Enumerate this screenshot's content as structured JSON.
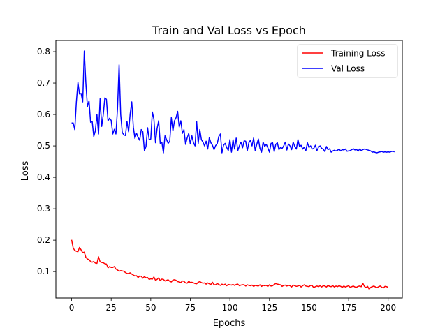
{
  "chart_data": {
    "type": "line",
    "title": "Train and Val Loss vs Epoch",
    "xlabel": "Epochs",
    "ylabel": "Loss",
    "xlim": [
      -9.95,
      208.95
    ],
    "ylim": [
      0.0159,
      0.8356
    ],
    "xticks": [
      0,
      25,
      50,
      75,
      100,
      125,
      150,
      175,
      200
    ],
    "yticks": [
      0.1,
      0.2,
      0.3,
      0.4,
      0.5,
      0.6,
      0.7,
      0.8
    ],
    "ytick_labels": [
      "0.1",
      "0.2",
      "0.3",
      "0.4",
      "0.5",
      "0.6",
      "0.7",
      "0.8"
    ],
    "grid": false,
    "legend_position": "top-right",
    "series": [
      {
        "name": "Training Loss",
        "color": "#ff0000",
        "values": [
          0.201,
          0.175,
          0.167,
          0.165,
          0.163,
          0.177,
          0.169,
          0.16,
          0.162,
          0.145,
          0.14,
          0.138,
          0.132,
          0.13,
          0.132,
          0.127,
          0.126,
          0.147,
          0.131,
          0.129,
          0.128,
          0.125,
          0.124,
          0.112,
          0.116,
          0.113,
          0.113,
          0.116,
          0.108,
          0.105,
          0.101,
          0.103,
          0.102,
          0.101,
          0.097,
          0.094,
          0.094,
          0.096,
          0.092,
          0.089,
          0.086,
          0.087,
          0.081,
          0.086,
          0.085,
          0.079,
          0.084,
          0.08,
          0.081,
          0.075,
          0.077,
          0.076,
          0.083,
          0.072,
          0.075,
          0.08,
          0.071,
          0.076,
          0.075,
          0.07,
          0.072,
          0.074,
          0.069,
          0.067,
          0.073,
          0.074,
          0.072,
          0.068,
          0.067,
          0.065,
          0.07,
          0.069,
          0.064,
          0.063,
          0.069,
          0.065,
          0.066,
          0.064,
          0.062,
          0.061,
          0.066,
          0.068,
          0.065,
          0.063,
          0.064,
          0.06,
          0.064,
          0.061,
          0.059,
          0.066,
          0.058,
          0.058,
          0.062,
          0.059,
          0.056,
          0.06,
          0.057,
          0.06,
          0.055,
          0.059,
          0.058,
          0.057,
          0.059,
          0.056,
          0.059,
          0.06,
          0.055,
          0.057,
          0.058,
          0.058,
          0.054,
          0.058,
          0.056,
          0.055,
          0.057,
          0.053,
          0.056,
          0.055,
          0.054,
          0.058,
          0.053,
          0.056,
          0.055,
          0.056,
          0.053,
          0.058,
          0.054,
          0.055,
          0.059,
          0.062,
          0.06,
          0.059,
          0.058,
          0.053,
          0.056,
          0.057,
          0.054,
          0.056,
          0.055,
          0.051,
          0.057,
          0.055,
          0.053,
          0.054,
          0.056,
          0.051,
          0.055,
          0.058,
          0.054,
          0.053,
          0.052,
          0.056,
          0.055,
          0.049,
          0.052,
          0.054,
          0.052,
          0.055,
          0.051,
          0.055,
          0.054,
          0.051,
          0.056,
          0.053,
          0.052,
          0.055,
          0.051,
          0.054,
          0.052,
          0.055,
          0.053,
          0.05,
          0.054,
          0.051,
          0.053,
          0.055,
          0.05,
          0.052,
          0.054,
          0.051,
          0.05,
          0.053,
          0.054,
          0.052,
          0.063,
          0.053,
          0.049,
          0.053,
          0.044,
          0.05,
          0.052,
          0.054,
          0.051,
          0.049,
          0.052,
          0.054,
          0.05,
          0.048,
          0.053,
          0.052,
          0.05
        ]
      },
      {
        "name": "Val Loss",
        "color": "#0000ff",
        "values": [
          0.573,
          0.573,
          0.552,
          0.64,
          0.702,
          0.665,
          0.667,
          0.64,
          0.802,
          0.7,
          0.625,
          0.644,
          0.575,
          0.578,
          0.53,
          0.548,
          0.6,
          0.538,
          0.65,
          0.562,
          0.6,
          0.653,
          0.648,
          0.58,
          0.588,
          0.581,
          0.538,
          0.553,
          0.538,
          0.62,
          0.758,
          0.6,
          0.543,
          0.535,
          0.533,
          0.578,
          0.545,
          0.602,
          0.64,
          0.56,
          0.524,
          0.54,
          0.527,
          0.518,
          0.552,
          0.545,
          0.485,
          0.498,
          0.558,
          0.52,
          0.522,
          0.608,
          0.585,
          0.51,
          0.555,
          0.58,
          0.508,
          0.512,
          0.478,
          0.532,
          0.52,
          0.508,
          0.515,
          0.59,
          0.548,
          0.58,
          0.59,
          0.61,
          0.56,
          0.58,
          0.54,
          0.552,
          0.505,
          0.525,
          0.54,
          0.506,
          0.532,
          0.51,
          0.5,
          0.578,
          0.508,
          0.552,
          0.52,
          0.512,
          0.5,
          0.515,
          0.49,
          0.526,
          0.51,
          0.502,
          0.488,
          0.501,
          0.507,
          0.53,
          0.538,
          0.478,
          0.502,
          0.508,
          0.495,
          0.485,
          0.52,
          0.48,
          0.52,
          0.49,
          0.525,
          0.485,
          0.5,
          0.512,
          0.494,
          0.516,
          0.515,
          0.485,
          0.51,
          0.518,
          0.5,
          0.525,
          0.485,
          0.505,
          0.522,
          0.492,
          0.48,
          0.512,
          0.498,
          0.505,
          0.494,
          0.48,
          0.508,
          0.51,
          0.482,
          0.505,
          0.51,
          0.488,
          0.495,
          0.492,
          0.5,
          0.512,
          0.487,
          0.506,
          0.5,
          0.488,
          0.512,
          0.498,
          0.49,
          0.52,
          0.498,
          0.502,
          0.49,
          0.496,
          0.485,
          0.51,
          0.495,
          0.5,
          0.49,
          0.492,
          0.502,
          0.485,
          0.496,
          0.5,
          0.492,
          0.49,
          0.482,
          0.498,
          0.488,
          0.491,
          0.48,
          0.484,
          0.486,
          0.484,
          0.486,
          0.49,
          0.484,
          0.488,
          0.487,
          0.49,
          0.483,
          0.484,
          0.485,
          0.488,
          0.491,
          0.487,
          0.489,
          0.483,
          0.49,
          0.485,
          0.488,
          0.49,
          0.489,
          0.487,
          0.486,
          0.484,
          0.48,
          0.481,
          0.479,
          0.478,
          0.48,
          0.481,
          0.482,
          0.48,
          0.481,
          0.48,
          0.481,
          0.48,
          0.482,
          0.483,
          0.481
        ]
      }
    ]
  }
}
